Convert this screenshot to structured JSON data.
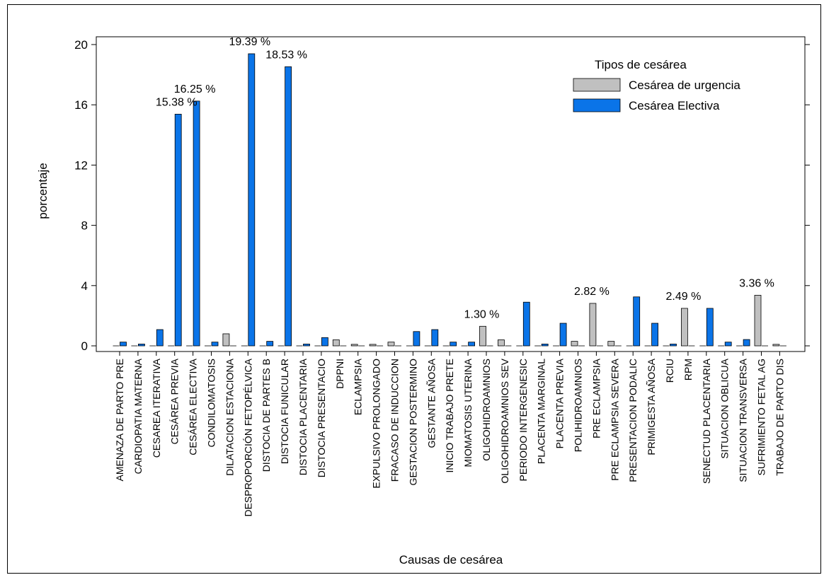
{
  "chart_data": {
    "type": "bar",
    "xlabel": "Causas de cesárea",
    "ylabel": "porcentaje",
    "ylim": [
      0,
      20
    ],
    "yticks": [
      0,
      4,
      8,
      12,
      16,
      20
    ],
    "grid": false,
    "legend": {
      "title": "Tipos de cesárea",
      "placement": "top-right"
    },
    "categories": [
      "AMENAZA DE PARTO PRE",
      "CARDIOPATIA MATERNA",
      "CESAREA ITERATIVA",
      "CESÁREA PREVIA",
      "CESÁREA ELECTIVA",
      "CONDILOMATOSIS",
      "DILATACION ESTACIONA",
      "DESPROPORCIÓN FETOPÉLVICA",
      "DISTOCIA DE PARTES B",
      "DISTOCIA FUNICULAR",
      "DISTOCIA PLACENTARIA",
      "DISTOCIA PRESENTACIO",
      "DPPNI",
      "ECLAMPSIA",
      "EXPULSIVO PROLONGADO",
      "FRACASO DE INDUCCION",
      "GESTACION POSTERMINO",
      "GESTANTE AÑOSA",
      "INICIO TRABAJO PRETE",
      "MIOMATOSIS UTERINA",
      "OLIGOHIDROAMNIOS",
      "OLIGOHIDROAMNIOS SEV",
      "PERIODO INTERGENESIC",
      "PLACENTA MARGINAL",
      "PLACENTA PREVIA",
      "POLIHIDROAMNIOS",
      "PRE ECLAMPSIA",
      "PRE ECLAMPSIA SEVERA",
      "PRESENTACION PODALIC",
      "PRIMIGESTA AÑOSA",
      "RCIU",
      "RPM",
      "SENECTUD PLACENTARIA",
      "SITUACION OBLICUA",
      "SITUACION TRANSVERSA",
      "SUFRIMIENTO FETAL AG",
      "TRABAJO DE PARTO DIS"
    ],
    "series": [
      {
        "name": "Cesárea de urgencia",
        "color": "#c0c0c0",
        "values": [
          0,
          0,
          0,
          0,
          0,
          0,
          0.8,
          0,
          0,
          0,
          0,
          0,
          0.4,
          0.1,
          0.1,
          0.25,
          0,
          0,
          0,
          0,
          1.3,
          0.4,
          0,
          0,
          0,
          0.3,
          2.82,
          0.3,
          0,
          0,
          0,
          2.49,
          0,
          0,
          0,
          3.36,
          0.1
        ]
      },
      {
        "name": "Cesárea Electiva",
        "color": "#0a74e8",
        "values": [
          0.25,
          0.12,
          1.08,
          15.38,
          16.25,
          0.25,
          0,
          19.39,
          0.3,
          18.53,
          0.12,
          0.55,
          0,
          0,
          0,
          0,
          0.95,
          1.08,
          0.25,
          0.25,
          0,
          0,
          2.9,
          0.12,
          1.5,
          0,
          0,
          0,
          3.25,
          1.5,
          0.12,
          0,
          2.49,
          0.25,
          0.42,
          0,
          0
        ]
      }
    ],
    "annotations": [
      {
        "category_index": 3,
        "series_index": 1,
        "value": 15.38,
        "text": "15.38 %"
      },
      {
        "category_index": 4,
        "series_index": 1,
        "value": 16.25,
        "text": "16.25 %"
      },
      {
        "category_index": 7,
        "series_index": 1,
        "value": 19.39,
        "text": "19.39 %"
      },
      {
        "category_index": 9,
        "series_index": 1,
        "value": 18.53,
        "text": "18.53 %"
      },
      {
        "category_index": 20,
        "series_index": 0,
        "value": 1.3,
        "text": "1.30 %"
      },
      {
        "category_index": 26,
        "series_index": 0,
        "value": 2.82,
        "text": "2.82 %"
      },
      {
        "category_index": 31,
        "series_index": 0,
        "value": 2.49,
        "text": "2.49 %"
      },
      {
        "category_index": 35,
        "series_index": 0,
        "value": 3.36,
        "text": "3.36 %"
      }
    ]
  }
}
